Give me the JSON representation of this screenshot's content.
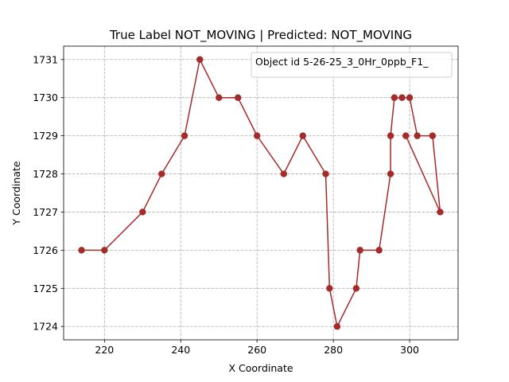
{
  "chart_data": {
    "type": "line",
    "title": "True Label NOT_MOVING | Predicted: NOT_MOVING",
    "xlabel": "X Coordinate",
    "ylabel": "Y Coordinate",
    "xlim": [
      209.3,
      312.7
    ],
    "ylim": [
      1723.65,
      1731.35
    ],
    "xticks": [
      220,
      240,
      260,
      280,
      300
    ],
    "yticks": [
      1724,
      1725,
      1726,
      1727,
      1728,
      1729,
      1730,
      1731
    ],
    "grid": true,
    "legend": {
      "location": "upper right",
      "entries": [
        "Object id 5-26-25_3_0Hr_0ppb_F1_"
      ]
    },
    "series": [
      {
        "name": "Object id 5-26-25_3_0Hr_0ppb_F1_",
        "color": "#a52a2a",
        "marker": "circle",
        "x": [
          214,
          220,
          230,
          235,
          241,
          245,
          250,
          255,
          260,
          267,
          272,
          278,
          279,
          281,
          286,
          287,
          292,
          295,
          295,
          296,
          298,
          300,
          302,
          306,
          308,
          299
        ],
        "y": [
          1726,
          1726,
          1727,
          1728,
          1729,
          1731,
          1730,
          1730,
          1729,
          1728,
          1729,
          1728,
          1725,
          1724,
          1725,
          1726,
          1726,
          1728,
          1729,
          1730,
          1730,
          1730,
          1729,
          1729,
          1727,
          1729
        ]
      }
    ]
  }
}
